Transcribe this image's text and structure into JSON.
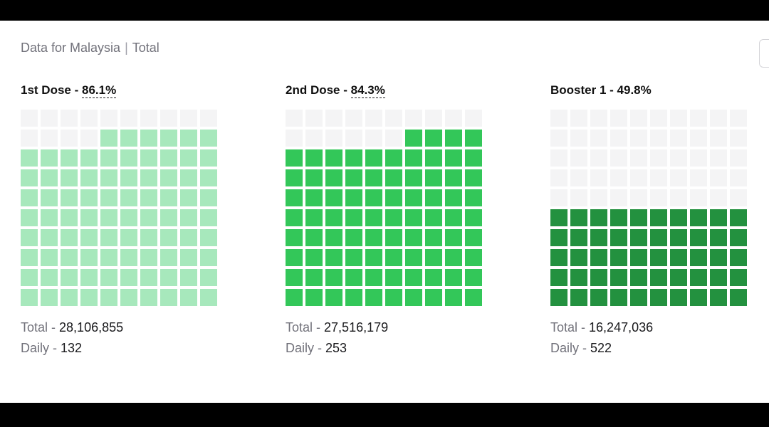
{
  "header": {
    "prefix": "Data for Malaysia",
    "scope": "Total"
  },
  "chart_data": {
    "type": "waffle",
    "grid": [
      10,
      10
    ],
    "empty_color": "#f4f4f5",
    "charts": [
      {
        "name": "1st Dose",
        "percent": 86.1,
        "percent_label": "86.1%",
        "dashed_underline": true,
        "filled_cells": 86,
        "color": "#a7e8bc",
        "total_label": "Total",
        "total": "28,106,855",
        "daily_label": "Daily",
        "daily": "132"
      },
      {
        "name": "2nd Dose",
        "percent": 84.3,
        "percent_label": "84.3%",
        "dashed_underline": true,
        "filled_cells": 84,
        "color": "#33c759",
        "total_label": "Total",
        "total": "27,516,179",
        "daily_label": "Daily",
        "daily": "253"
      },
      {
        "name": "Booster 1",
        "percent": 49.8,
        "percent_label": "49.8%",
        "dashed_underline": false,
        "filled_cells": 50,
        "color": "#23913f",
        "total_label": "Total",
        "total": "16,247,036",
        "daily_label": "Daily",
        "daily": "522"
      }
    ]
  }
}
